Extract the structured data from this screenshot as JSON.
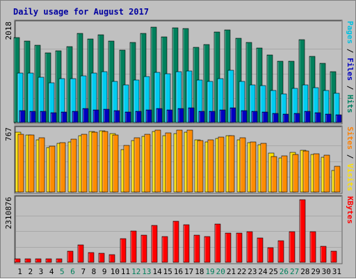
{
  "chart_data": {
    "type": "bar",
    "title": "Daily usage for August 2017",
    "categories": [
      "1",
      "2",
      "3",
      "4",
      "5",
      "6",
      "7",
      "8",
      "9",
      "10",
      "11",
      "12",
      "13",
      "14",
      "15",
      "16",
      "17",
      "18",
      "19",
      "20",
      "21",
      "22",
      "23",
      "24",
      "25",
      "26",
      "27",
      "28",
      "29",
      "30",
      "31"
    ],
    "weekend_days": [
      "5",
      "6",
      "12",
      "13",
      "19",
      "20",
      "26",
      "27"
    ],
    "panels": [
      {
        "id": "hits",
        "max_label": "2018",
        "ymax": 2018,
        "right_label": [
          {
            "text": "Pages",
            "color": "#00c0e0"
          },
          {
            "text": " / ",
            "color": "#000000"
          },
          {
            "text": "Files",
            "color": "#0000c0"
          },
          {
            "text": " / ",
            "color": "#000000"
          },
          {
            "text": "Hits",
            "color": "#008060"
          }
        ],
        "series": [
          {
            "name": "Hits",
            "color": "#00805c",
            "values": [
              1745,
              1675,
              1585,
              1435,
              1475,
              1565,
              1835,
              1715,
              1810,
              1675,
              1485,
              1640,
              1825,
              1960,
              1760,
              1940,
              1930,
              1545,
              1610,
              1860,
              1910,
              1735,
              1640,
              1535,
              1385,
              1255,
              1255,
              1700,
              1360,
              1215,
              1040
            ]
          },
          {
            "name": "Files",
            "color": "#00ccf0",
            "values": [
              1010,
              1020,
              930,
              820,
              900,
              900,
              955,
              1010,
              1045,
              850,
              780,
              880,
              940,
              1035,
              1000,
              1045,
              1065,
              880,
              840,
              905,
              1070,
              850,
              780,
              760,
              665,
              580,
              695,
              770,
              715,
              660,
              605
            ]
          },
          {
            "name": "Pages",
            "color": "#0000c0",
            "values": [
              240,
              235,
              225,
              205,
              215,
              225,
              280,
              255,
              270,
              240,
              215,
              235,
              260,
              285,
              260,
              290,
              295,
              235,
              230,
              255,
              300,
              250,
              225,
              210,
              190,
              170,
              185,
              235,
              195,
              175,
              155
            ]
          }
        ]
      },
      {
        "id": "visits",
        "max_label": "767",
        "ymax": 767,
        "right_label": [
          {
            "text": "Sites",
            "color": "#ff8000"
          },
          {
            "text": " / ",
            "color": "#000000"
          },
          {
            "text": "Visits",
            "color": "#ffe000"
          }
        ],
        "series": [
          {
            "name": "Visits",
            "color": "#ffe000",
            "values": [
              742,
              710,
              645,
              550,
              600,
              620,
              694,
              752,
              762,
              720,
              530,
              635,
              690,
              748,
              700,
              727,
              742,
              650,
              620,
              660,
              702,
              650,
              610,
              585,
              480,
              420,
              490,
              520,
              465,
              430,
              270
            ]
          },
          {
            "name": "Sites",
            "color": "#ff8c00",
            "values": [
              719,
              710,
              671,
              569,
              613,
              652,
              711,
              744,
              750,
              708,
              574,
              670,
              716,
              771,
              736,
              770,
              769,
              635,
              646,
              679,
              699,
              674,
              619,
              601,
              440,
              447,
              466,
              506,
              474,
              458,
              321
            ]
          }
        ]
      },
      {
        "id": "kbytes",
        "max_label": "2310876",
        "ymax": 2310876,
        "right_label": [
          {
            "text": "KBytes",
            "color": "#ff0000"
          }
        ],
        "series": [
          {
            "name": "KBytes",
            "color": "#ff0000",
            "values": [
              140000,
              130000,
              130000,
              130000,
              120000,
              400000,
              650000,
              350000,
              340000,
              290000,
              880000,
              1150000,
              1000000,
              1350000,
              950000,
              1520000,
              1380000,
              1000000,
              960000,
              1420000,
              1090000,
              1090000,
              1120000,
              910000,
              550000,
              800000,
              1120000,
              2310876,
              1120000,
              590000,
              400000
            ]
          }
        ]
      }
    ]
  }
}
